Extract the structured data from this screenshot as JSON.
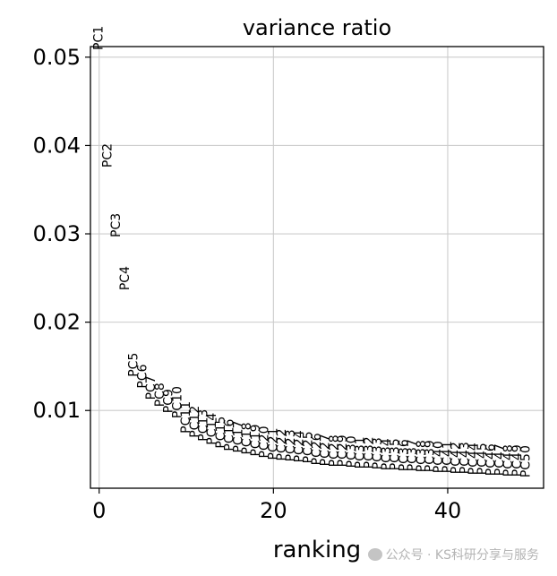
{
  "chart_data": {
    "type": "scatter",
    "title": "variance ratio",
    "xlabel": "ranking",
    "ylabel": "",
    "xlim": [
      -1,
      51
    ],
    "ylim": [
      0.0012,
      0.0512
    ],
    "xticks": [
      0,
      20,
      40
    ],
    "xtick_labels": [
      "0",
      "20",
      "40"
    ],
    "yticks": [
      0.01,
      0.02,
      0.03,
      0.04,
      0.05
    ],
    "ytick_labels": [
      "0.01",
      "0.02",
      "0.03",
      "0.04",
      "0.05"
    ],
    "grid": true,
    "legend": "none",
    "point_style": "rotated text labels",
    "labels": [
      "PC1",
      "PC2",
      "PC3",
      "PC4",
      "PC5",
      "PC6",
      "PC7",
      "PC8",
      "PC9",
      "PC10",
      "PC11",
      "PC12",
      "PC13",
      "PC14",
      "PC15",
      "PC16",
      "PC17",
      "PC18",
      "PC19",
      "PC20",
      "PC21",
      "PC22",
      "PC23",
      "PC24",
      "PC25",
      "PC26",
      "PC27",
      "PC28",
      "PC29",
      "PC30",
      "PC31",
      "PC32",
      "PC33",
      "PC34",
      "PC35",
      "PC36",
      "PC37",
      "PC38",
      "PC39",
      "PC40",
      "PC41",
      "PC42",
      "PC43",
      "PC44",
      "PC45",
      "PC46",
      "PC47",
      "PC48",
      "PC49",
      "PC50"
    ],
    "x": [
      0,
      1,
      2,
      3,
      4,
      5,
      6,
      7,
      8,
      9,
      10,
      11,
      12,
      13,
      14,
      15,
      16,
      17,
      18,
      19,
      20,
      21,
      22,
      23,
      24,
      25,
      26,
      27,
      28,
      29,
      30,
      31,
      32,
      33,
      34,
      35,
      36,
      37,
      38,
      39,
      40,
      41,
      42,
      43,
      44,
      45,
      46,
      47,
      48,
      49
    ],
    "values": [
      0.0508,
      0.0375,
      0.0296,
      0.0236,
      0.0138,
      0.0125,
      0.0112,
      0.0104,
      0.0097,
      0.0091,
      0.0074,
      0.0069,
      0.0065,
      0.0061,
      0.0057,
      0.0054,
      0.0052,
      0.005,
      0.0048,
      0.0046,
      0.0044,
      0.0043,
      0.0042,
      0.0041,
      0.004,
      0.0038,
      0.0037,
      0.0036,
      0.0036,
      0.0035,
      0.0034,
      0.0034,
      0.0033,
      0.0032,
      0.0032,
      0.0031,
      0.0031,
      0.003,
      0.003,
      0.0029,
      0.0029,
      0.0028,
      0.0028,
      0.0027,
      0.0027,
      0.0026,
      0.0026,
      0.0025,
      0.0025,
      0.0024
    ]
  },
  "watermark": {
    "text": "公众号 · KS科研分享与服务"
  }
}
